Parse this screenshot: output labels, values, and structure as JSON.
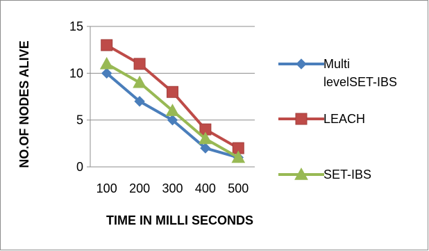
{
  "chart_data": {
    "type": "line",
    "categories": [
      "100",
      "200",
      "300",
      "400",
      "500"
    ],
    "series": [
      {
        "name": "Multi levelSET-IBS",
        "legend_lines": [
          "Multi",
          "levelSET-IBS"
        ],
        "values": [
          10,
          7,
          5,
          2,
          1
        ],
        "color": "#4a7ebb",
        "marker": "diamond"
      },
      {
        "name": "LEACH",
        "legend_lines": [
          "LEACH"
        ],
        "values": [
          13,
          11,
          8,
          4,
          2
        ],
        "color": "#be4b48",
        "marker": "square"
      },
      {
        "name": "SET-IBS",
        "legend_lines": [
          "SET-IBS"
        ],
        "values": [
          11,
          9,
          6,
          3,
          1
        ],
        "color": "#98b954",
        "marker": "triangle"
      }
    ],
    "xlabel": "TIME IN MILLI SECONDS",
    "ylabel": "NO.OF NODES ALIVE",
    "ylim": [
      0,
      15
    ],
    "yticks": [
      "0",
      "5",
      "10",
      "15"
    ],
    "grid": true,
    "legend_position": "right"
  }
}
